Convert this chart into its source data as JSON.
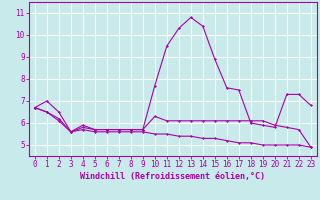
{
  "xlabel": "Windchill (Refroidissement éolien,°C)",
  "ylabel": "",
  "background_color": "#c8eaea",
  "line_color": "#aa00aa",
  "grid_color": "#ffffff",
  "hours": [
    0,
    1,
    2,
    3,
    4,
    5,
    6,
    7,
    8,
    9,
    10,
    11,
    12,
    13,
    14,
    15,
    16,
    17,
    18,
    19,
    20,
    21,
    22,
    23
  ],
  "line1": [
    6.7,
    7.0,
    6.5,
    5.6,
    5.8,
    5.7,
    5.7,
    5.7,
    5.7,
    5.7,
    7.7,
    9.5,
    10.3,
    10.8,
    10.4,
    8.9,
    7.6,
    7.5,
    6.0,
    5.9,
    5.8,
    7.3,
    7.3,
    6.8
  ],
  "line2": [
    6.7,
    6.5,
    6.2,
    5.6,
    5.9,
    5.7,
    5.7,
    5.7,
    5.7,
    5.7,
    6.3,
    6.1,
    6.1,
    6.1,
    6.1,
    6.1,
    6.1,
    6.1,
    6.1,
    6.1,
    5.9,
    5.8,
    5.7,
    4.9
  ],
  "line3": [
    6.7,
    6.5,
    6.1,
    5.6,
    5.7,
    5.6,
    5.6,
    5.6,
    5.6,
    5.6,
    5.5,
    5.5,
    5.4,
    5.4,
    5.3,
    5.3,
    5.2,
    5.1,
    5.1,
    5.0,
    5.0,
    5.0,
    5.0,
    4.9
  ],
  "ylim": [
    4.5,
    11.5
  ],
  "yticks": [
    5,
    6,
    7,
    8,
    9,
    10,
    11
  ],
  "xlim": [
    -0.5,
    23.5
  ],
  "xticks": [
    0,
    1,
    2,
    3,
    4,
    5,
    6,
    7,
    8,
    9,
    10,
    11,
    12,
    13,
    14,
    15,
    16,
    17,
    18,
    19,
    20,
    21,
    22,
    23
  ],
  "tick_fontsize": 5.5,
  "label_fontsize": 6.0,
  "marker": "D",
  "markersize": 1.5,
  "linewidth": 0.8
}
